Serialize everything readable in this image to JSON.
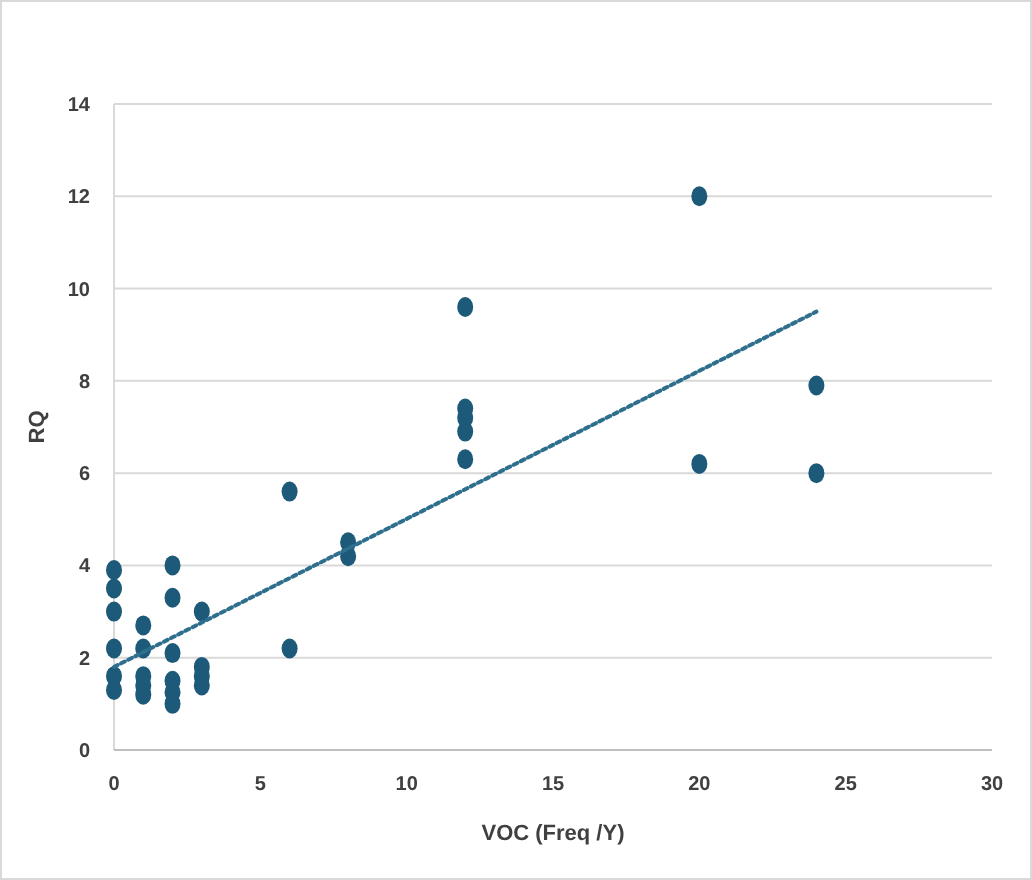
{
  "chart_data": {
    "type": "scatter",
    "xlabel": "VOC (Freq /Y)",
    "ylabel": "RQ",
    "xlim": [
      0,
      30
    ],
    "xticks": [
      0,
      5,
      10,
      15,
      20,
      25,
      30
    ],
    "ylim": [
      0,
      14
    ],
    "yticks": [
      0,
      2,
      4,
      6,
      8,
      10,
      12,
      14
    ],
    "grid": "y",
    "marker": "circle",
    "series": [
      {
        "color": "#1d5a7a",
        "x": [
          0,
          0,
          0,
          0,
          0,
          0,
          1,
          1,
          1,
          1,
          1,
          2,
          2,
          2,
          2,
          2,
          2,
          3,
          3,
          3,
          3,
          6,
          6,
          8,
          8,
          12,
          12,
          12,
          12,
          12,
          20,
          20,
          24,
          24
        ],
        "values": [
          3.9,
          3.5,
          3.0,
          2.2,
          1.6,
          1.3,
          2.7,
          2.2,
          1.6,
          1.4,
          1.2,
          4.0,
          3.3,
          2.1,
          1.5,
          1.25,
          1.0,
          3.0,
          1.8,
          1.6,
          1.4,
          5.6,
          2.2,
          4.5,
          4.2,
          9.6,
          7.4,
          7.2,
          6.9,
          6.3,
          12.0,
          6.2,
          7.9,
          6.0
        ]
      },
      {
        "type": "line",
        "color": "#2e6f8e",
        "line_style": "dotted",
        "marker": "none",
        "x": [
          0,
          24
        ],
        "values": [
          1.8,
          9.5
        ]
      }
    ]
  }
}
